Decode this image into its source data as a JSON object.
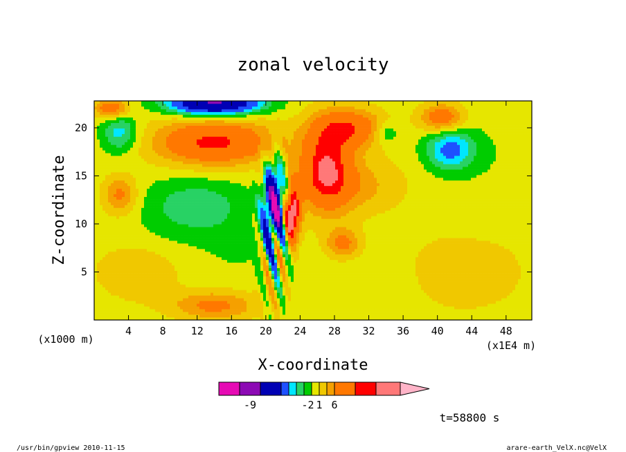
{
  "chart_data": {
    "type": "heatmap",
    "title": "zonal velocity",
    "xlabel": "X-coordinate",
    "ylabel": "Z-coordinate",
    "x_unit_left": "(x1000 m)",
    "x_unit_right": "(x1E4 m)",
    "xlim": [
      0,
      51
    ],
    "ylim": [
      0,
      22.8
    ],
    "x_ticks": [
      "4",
      "8",
      "12",
      "16",
      "20",
      "24",
      "28",
      "32",
      "36",
      "40",
      "44",
      "48"
    ],
    "y_ticks": [
      "5",
      "10",
      "15",
      "20"
    ],
    "x_tick_values": [
      4,
      8,
      12,
      16,
      20,
      24,
      28,
      32,
      36,
      40,
      44,
      48
    ],
    "y_tick_values": [
      5,
      10,
      15,
      20
    ],
    "colorbar": {
      "colors": [
        "#e60ab4",
        "#8c0ab4",
        "#0000b4",
        "#1e50ff",
        "#00e6ff",
        "#28d264",
        "#00cc00",
        "#e6e600",
        "#f0c800",
        "#f5a000",
        "#ff7800",
        "#ff0000",
        "#ff7878",
        "#ffb4c8"
      ],
      "labels": [
        "-9",
        "-2",
        "1",
        "6"
      ],
      "label_bins": [
        1.5,
        6.5,
        8.0,
        10.0
      ]
    },
    "annotation_time": "t=58800 s",
    "features": [
      {
        "x": 21,
        "z": 12,
        "value": -10,
        "rx": 1.2,
        "rz": 4
      },
      {
        "x": 14,
        "z": 22.6,
        "value": -10,
        "rx": 5,
        "rz": 1.2
      },
      {
        "x": 3,
        "z": 19.5,
        "value": -3,
        "rx": 2,
        "rz": 2
      },
      {
        "x": 41.5,
        "z": 17.8,
        "value": -4,
        "rx": 2.8,
        "rz": 2.2
      },
      {
        "x": 34,
        "z": 19.5,
        "value": -2,
        "rx": 1.5,
        "rz": 1.2
      },
      {
        "x": 12,
        "z": 12,
        "value": -2,
        "rx": 6,
        "rz": 3
      },
      {
        "x": 17,
        "z": 8,
        "value": -1,
        "rx": 3,
        "rz": 2
      },
      {
        "x": 14,
        "z": 18.5,
        "value": 5,
        "rx": 7,
        "rz": 2.5
      },
      {
        "x": 27,
        "z": 16,
        "value": 5,
        "rx": 3,
        "rz": 4.5
      },
      {
        "x": 30,
        "z": 20,
        "value": 4,
        "rx": 4,
        "rz": 2
      },
      {
        "x": 23,
        "z": 11,
        "value": 7,
        "rx": 1,
        "rz": 3
      },
      {
        "x": 40.5,
        "z": 21,
        "value": 4,
        "rx": 2.5,
        "rz": 1.5
      },
      {
        "x": 2,
        "z": 22,
        "value": 4,
        "rx": 2,
        "rz": 1
      },
      {
        "x": 3,
        "z": 13,
        "value": 3,
        "rx": 2,
        "rz": 2
      },
      {
        "x": 29,
        "z": 8,
        "value": 3,
        "rx": 2,
        "rz": 1.5
      },
      {
        "x": 14,
        "z": 1.5,
        "value": 3,
        "rx": 5,
        "rz": 1.5
      },
      {
        "x": 30,
        "z": 14,
        "value": 2,
        "rx": 6,
        "rz": 3
      },
      {
        "x": 43,
        "z": 5,
        "value": 1.5,
        "rx": 7,
        "rz": 4
      },
      {
        "x": 5,
        "z": 5,
        "value": 1.5,
        "rx": 5,
        "rz": 3
      },
      {
        "x": 10,
        "z": 9,
        "value": -0.3,
        "rx": 6,
        "rz": 3
      },
      {
        "x": 35,
        "z": 4,
        "value": -0.3,
        "rx": 5,
        "rz": 3
      },
      {
        "x": 47,
        "z": 17,
        "value": -0.3,
        "rx": 4,
        "rz": 4
      },
      {
        "x": 45,
        "z": 11,
        "value": -0.2,
        "rx": 3,
        "rz": 3
      }
    ]
  },
  "footer": {
    "left": "/usr/bin/gpview  2010-11-15",
    "right": "arare-earth_VelX.nc@VelX"
  }
}
